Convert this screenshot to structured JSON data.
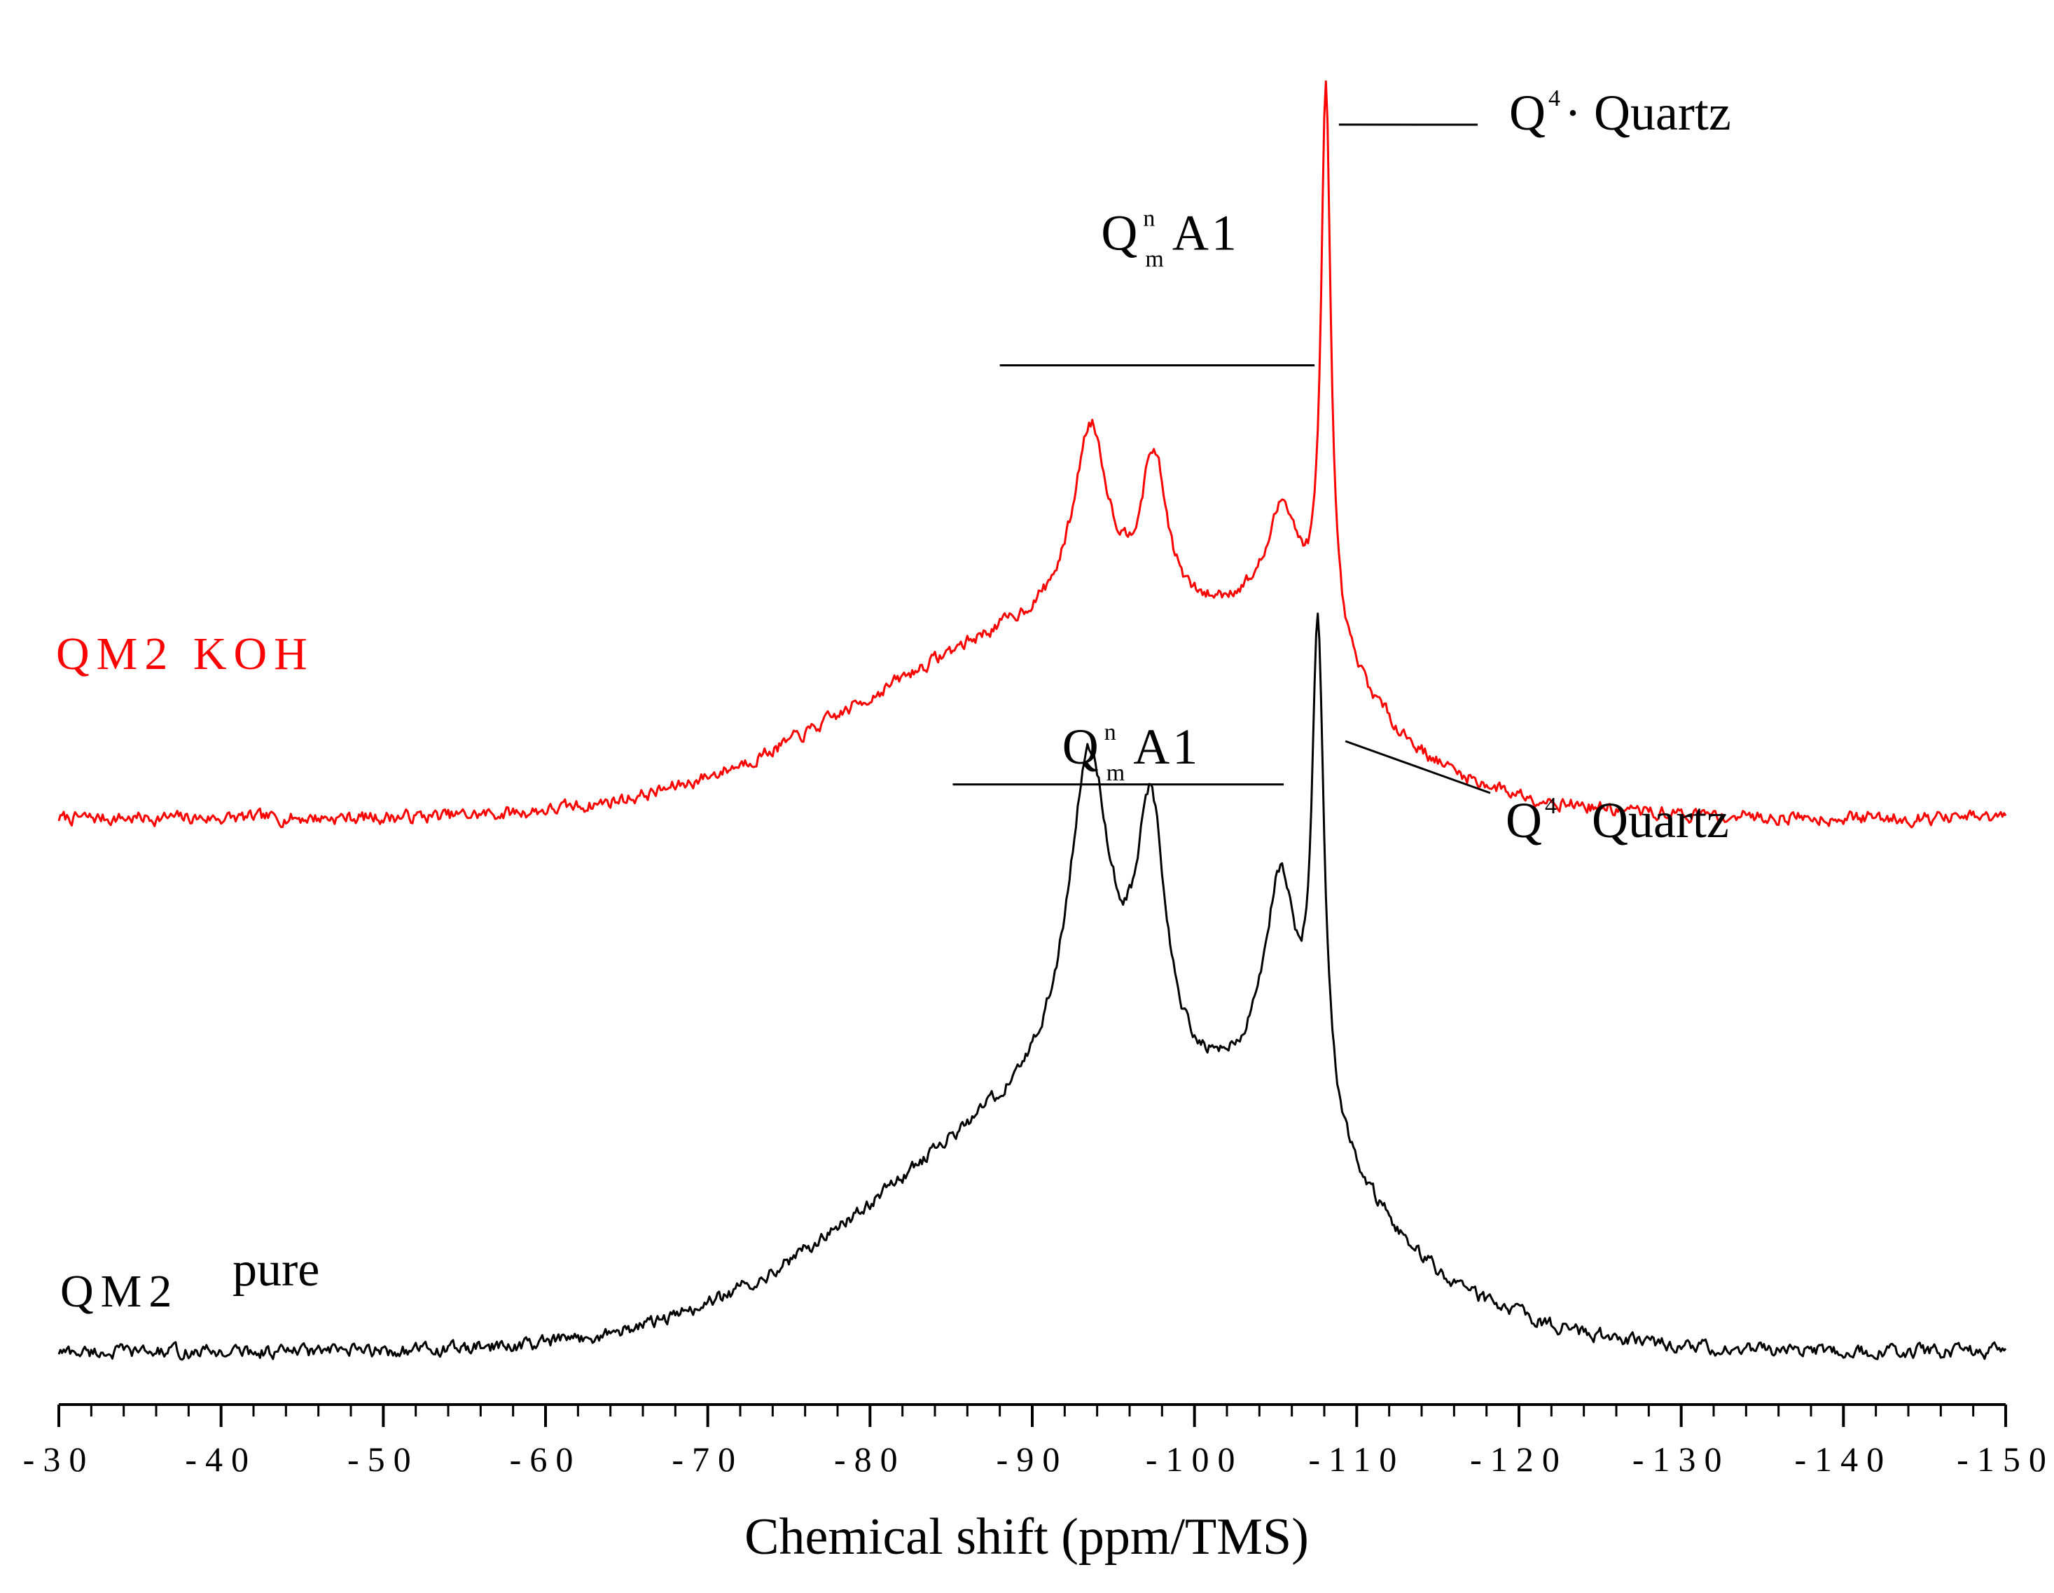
{
  "chart_data": {
    "type": "line",
    "title": "",
    "xlabel": "Chemical shift (ppm/TMS)",
    "ylabel": "",
    "xlim": [
      -30,
      -150
    ],
    "ylim": [
      0,
      1
    ],
    "x_ticks": [
      -30,
      -40,
      -50,
      -60,
      -70,
      -80,
      -90,
      -100,
      -110,
      -120,
      -130,
      -140,
      -150
    ],
    "x_tick_labels": [
      "-30",
      "-40",
      "-50",
      "-60",
      "-70",
      "-80",
      "-90",
      "-100",
      "-110",
      "-120",
      "-130",
      "-140",
      "-150"
    ],
    "grid": false,
    "series": [
      {
        "name": "QM2 KOH",
        "label_main": "QM2 KOH",
        "color": "#ff0000",
        "baseline": 0.4,
        "noise": 0.009,
        "peaks": [
          {
            "center": -93.6,
            "height": 0.14,
            "width": 1.3
          },
          {
            "center": -97.5,
            "height": 0.115,
            "width": 1.0
          },
          {
            "center": -105.5,
            "height": 0.075,
            "width": 1.1
          },
          {
            "center": -108.1,
            "height": 0.41,
            "width": 0.35
          }
        ],
        "broad": [
          {
            "center": -93,
            "height": 0.145,
            "width": 13
          },
          {
            "center": -106,
            "height": 0.06,
            "width": 4
          }
        ],
        "annotations": [
          {
            "type": "peak-bracket",
            "x_range": [
              -88,
              -107.4
            ],
            "level": 0.735,
            "label_main": "Q",
            "label_sup": "n",
            "label_sub": "m",
            "label_tail": "A1"
          },
          {
            "type": "pointer",
            "at_x": -108.9,
            "at_level": 0.913,
            "label_main": "Q",
            "label_sup": "4",
            "label_tail": "·  Quartz"
          }
        ]
      },
      {
        "name": "QM2 pure",
        "label_main": "QM2",
        "label_tail": "pure",
        "color": "#000000",
        "baseline": 0.005,
        "noise": 0.009,
        "peaks": [
          {
            "center": -93.5,
            "height": 0.24,
            "width": 1.6
          },
          {
            "center": -97.3,
            "height": 0.19,
            "width": 1.1
          },
          {
            "center": -105.3,
            "height": 0.16,
            "width": 1.2
          },
          {
            "center": -107.6,
            "height": 0.355,
            "width": 0.45
          }
        ],
        "broad": [
          {
            "center": -94,
            "height": 0.19,
            "width": 13
          },
          {
            "center": -106,
            "height": 0.05,
            "width": 4
          }
        ],
        "annotations": [
          {
            "type": "peak-bracket",
            "x_range": [
              -85.1,
              -105.5
            ],
            "level": 0.425,
            "label_main": "Q",
            "label_sup": "n",
            "label_sub": "m",
            "label_tail": "A1"
          },
          {
            "type": "pointer",
            "at_x": -109.3,
            "at_level": 0.457,
            "label_main": "Q",
            "label_sup": "4",
            "label_tail": "Quartz"
          }
        ]
      }
    ]
  }
}
